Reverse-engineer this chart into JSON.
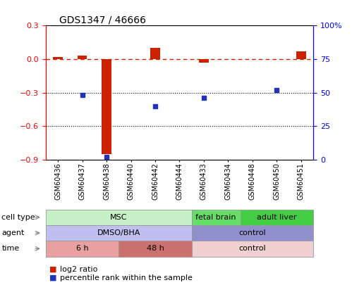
{
  "title": "GDS1347 / 46666",
  "samples": [
    "GSM60436",
    "GSM60437",
    "GSM60438",
    "GSM60440",
    "GSM60442",
    "GSM60444",
    "GSM60433",
    "GSM60434",
    "GSM60448",
    "GSM60450",
    "GSM60451"
  ],
  "log2_ratio": [
    0.02,
    0.03,
    -0.85,
    0.0,
    0.1,
    0.0,
    -0.03,
    0.0,
    0.0,
    0.0,
    0.07
  ],
  "percentile_rank": [
    null,
    48,
    2,
    null,
    40,
    null,
    46,
    null,
    null,
    52,
    null
  ],
  "ylim_left": [
    -0.9,
    0.3
  ],
  "ylim_right": [
    0,
    100
  ],
  "yticks_left": [
    0.3,
    0.0,
    -0.3,
    -0.6,
    -0.9
  ],
  "yticks_right": [
    100,
    75,
    50,
    25,
    0
  ],
  "dotted_lines": [
    -0.3,
    -0.6
  ],
  "cell_type_row": [
    {
      "label": "MSC",
      "start": 0,
      "end": 5,
      "color": "#c8f0c8"
    },
    {
      "label": "fetal brain",
      "start": 6,
      "end": 7,
      "color": "#66dd66"
    },
    {
      "label": "adult liver",
      "start": 8,
      "end": 10,
      "color": "#44cc44"
    }
  ],
  "agent_row": [
    {
      "label": "DMSO/BHA",
      "start": 0,
      "end": 5,
      "color": "#c0c0f0"
    },
    {
      "label": "control",
      "start": 6,
      "end": 10,
      "color": "#9090cc"
    }
  ],
  "time_row": [
    {
      "label": "6 h",
      "start": 0,
      "end": 2,
      "color": "#e8a0a0"
    },
    {
      "label": "48 h",
      "start": 3,
      "end": 5,
      "color": "#cc7070"
    },
    {
      "label": "control",
      "start": 6,
      "end": 10,
      "color": "#f0d0d0"
    }
  ],
  "row_labels": [
    "cell type",
    "agent",
    "time"
  ],
  "bar_color_red": "#cc2200",
  "bar_color_blue": "#2233bb",
  "dashed_color": "#cc2200",
  "bg_color": "#ffffff",
  "plot_bg": "#ffffff",
  "border_color": "#999999"
}
